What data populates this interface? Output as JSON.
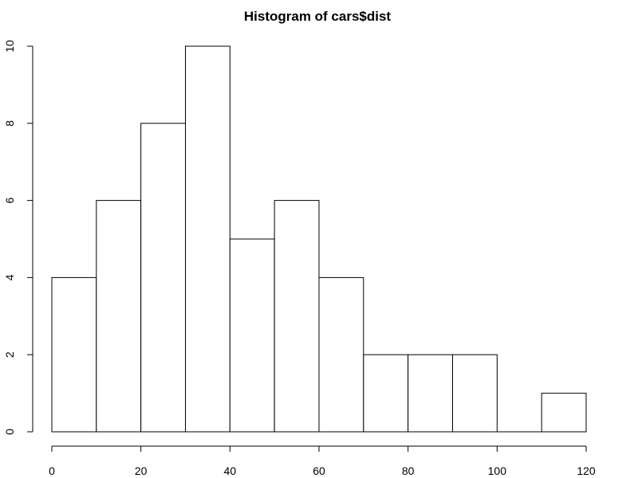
{
  "chart_data": {
    "type": "bar",
    "title": "Histogram of cars$dist",
    "xlabel": "",
    "ylabel": "",
    "bins": [
      {
        "start": 0,
        "end": 10,
        "count": 4
      },
      {
        "start": 10,
        "end": 20,
        "count": 6
      },
      {
        "start": 20,
        "end": 30,
        "count": 8
      },
      {
        "start": 30,
        "end": 40,
        "count": 10
      },
      {
        "start": 40,
        "end": 50,
        "count": 5
      },
      {
        "start": 50,
        "end": 60,
        "count": 6
      },
      {
        "start": 60,
        "end": 70,
        "count": 4
      },
      {
        "start": 70,
        "end": 80,
        "count": 2
      },
      {
        "start": 80,
        "end": 90,
        "count": 2
      },
      {
        "start": 90,
        "end": 100,
        "count": 2
      },
      {
        "start": 100,
        "end": 110,
        "count": 0
      },
      {
        "start": 110,
        "end": 120,
        "count": 1
      }
    ],
    "xlim": [
      0,
      120
    ],
    "ylim": [
      0,
      10
    ],
    "x_ticks": [
      "0",
      "20",
      "40",
      "60",
      "80",
      "100",
      "120"
    ],
    "y_ticks": [
      "0",
      "2",
      "4",
      "6",
      "8",
      "10"
    ],
    "grid": false,
    "colors": {
      "bar_fill": "#ffffff",
      "bar_stroke": "#000000",
      "axis": "#000000"
    }
  }
}
